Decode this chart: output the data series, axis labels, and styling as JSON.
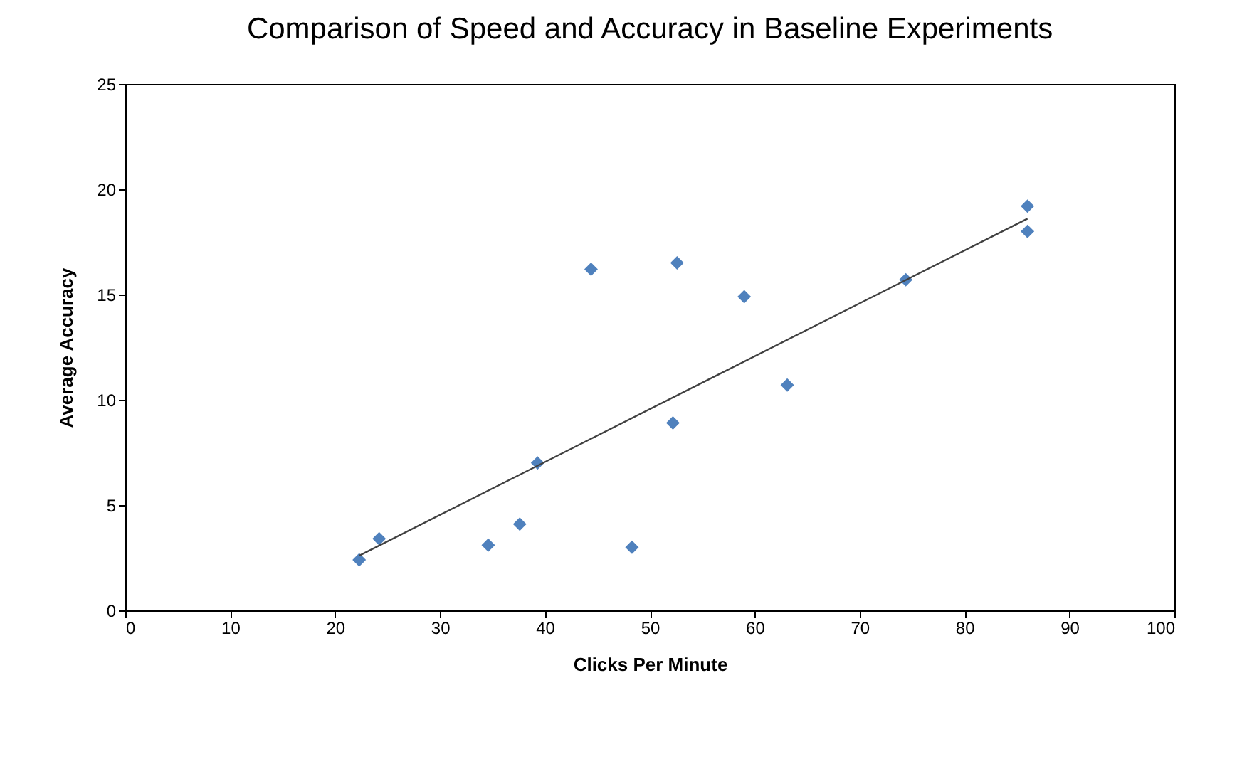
{
  "chart_data": {
    "type": "scatter",
    "title": "Comparison of Speed and Accuracy in Baseline Experiments",
    "xlabel": "Clicks Per Minute",
    "ylabel": "Average Accuracy",
    "xlim": [
      0,
      100
    ],
    "xticks": [
      0,
      10,
      20,
      30,
      40,
      50,
      60,
      70,
      80,
      90,
      100
    ],
    "ylim": [
      0,
      25
    ],
    "yticks": [
      0,
      5,
      10,
      15,
      20,
      25
    ],
    "series": [
      {
        "marker": "diamond",
        "color": "#4f81bd",
        "x": [
          22.3,
          24.2,
          34.6,
          37.6,
          39.3,
          44.4,
          48.3,
          52.2,
          52.6,
          59.0,
          63.1,
          74.4,
          86.0,
          86.0
        ],
        "values": [
          2.4,
          3.4,
          3.1,
          4.1,
          7.0,
          16.2,
          3.0,
          8.9,
          16.5,
          14.9,
          10.7,
          15.7,
          19.2,
          18.0
        ]
      },
      {
        "type": "line",
        "marker": "none",
        "color": "#404040",
        "x": [
          22.3,
          86.0
        ],
        "values": [
          2.6,
          18.6
        ]
      }
    ]
  }
}
